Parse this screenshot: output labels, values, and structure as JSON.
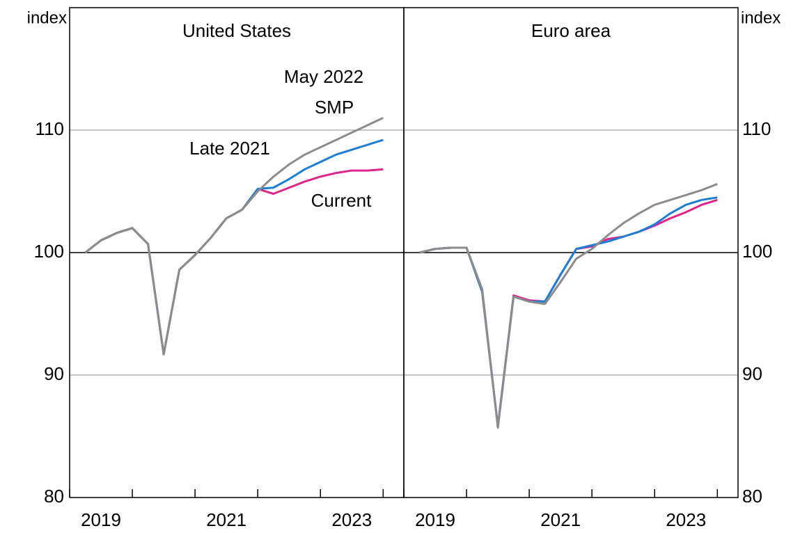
{
  "chart_data": [
    {
      "type": "line",
      "title": "United States",
      "y_label": "index",
      "axis_side": "left",
      "x": [
        2019.25,
        2019.5,
        2019.75,
        2020,
        2020.25,
        2020.5,
        2020.75,
        2021,
        2021.25,
        2021.5,
        2021.75,
        2022,
        2022.25,
        2022.5,
        2022.75,
        2023,
        2023.25,
        2023.5,
        2023.75,
        2024
      ],
      "series": [
        {
          "name": "Current",
          "color": "#e0258a",
          "values": [
            100,
            101,
            101.6,
            102,
            100.7,
            91.7,
            98.6,
            99.8,
            101.2,
            102.8,
            103.5,
            105.2,
            104.8,
            105.3,
            105.8,
            106.2,
            106.5,
            106.7,
            106.7,
            106.8
          ]
        },
        {
          "name": "May 2022 SMP",
          "color": "#1a7fd4",
          "values": [
            100,
            101,
            101.6,
            102,
            100.7,
            91.7,
            98.6,
            99.8,
            101.2,
            102.8,
            103.5,
            105.2,
            105.3,
            106,
            106.8,
            107.4,
            108,
            108.4,
            108.8,
            109.2
          ]
        },
        {
          "name": "Late 2021",
          "color": "#8c8c8c",
          "values": [
            100,
            101,
            101.6,
            102,
            100.7,
            91.7,
            98.6,
            99.8,
            101.2,
            102.8,
            103.5,
            105,
            106.2,
            107.2,
            108,
            108.6,
            109.2,
            109.8,
            110.4,
            111
          ]
        }
      ],
      "annotations": [
        {
          "text": "May 2022",
          "color": "#1a7fd4"
        },
        {
          "text": "SMP",
          "color": "#1a7fd4"
        },
        {
          "text": "Late 2021",
          "color": "#8c8c8c"
        },
        {
          "text": "Current",
          "color": "#e0258a"
        }
      ],
      "xlim": [
        2019,
        2024.33
      ],
      "xticks": [
        2019,
        2020,
        2021,
        2022,
        2023,
        2024
      ],
      "xtick_labels": [
        2019,
        2021,
        2023
      ],
      "ylim": [
        80,
        120
      ],
      "yticks": [
        80,
        90,
        100,
        110
      ],
      "baseline": 100,
      "grid": true
    },
    {
      "type": "line",
      "title": "Euro area",
      "y_label": "index",
      "axis_side": "right",
      "x": [
        2019.25,
        2019.5,
        2019.75,
        2020,
        2020.25,
        2020.5,
        2020.75,
        2021,
        2021.25,
        2021.5,
        2021.75,
        2022,
        2022.25,
        2022.5,
        2022.75,
        2023,
        2023.25,
        2023.5,
        2023.75,
        2024
      ],
      "series": [
        {
          "name": "Current",
          "color": "#e0258a",
          "values": [
            100,
            100.3,
            100.4,
            100.4,
            96.8,
            85.8,
            96.5,
            96.1,
            96,
            98.2,
            100.3,
            100.5,
            101.1,
            101.3,
            101.7,
            102.2,
            102.8,
            103.3,
            103.9,
            104.3
          ]
        },
        {
          "name": "May 2022 SMP",
          "color": "#1a7fd4",
          "values": [
            100,
            100.3,
            100.4,
            100.4,
            96.8,
            85.8,
            96.4,
            96,
            96,
            98.2,
            100.3,
            100.6,
            100.9,
            101.3,
            101.7,
            102.3,
            103.2,
            103.9,
            104.3,
            104.5
          ]
        },
        {
          "name": "Late 2021",
          "color": "#8c8c8c",
          "values": [
            100,
            100.3,
            100.4,
            100.4,
            97,
            85.7,
            96.4,
            96,
            95.8,
            97.6,
            99.5,
            100.3,
            101.4,
            102.4,
            103.2,
            103.9,
            104.3,
            104.7,
            105.1,
            105.6
          ]
        }
      ],
      "xlim": [
        2019,
        2024.33
      ],
      "xticks": [
        2019,
        2020,
        2021,
        2022,
        2023,
        2024
      ],
      "xtick_labels": [
        2019,
        2021,
        2023
      ],
      "ylim": [
        80,
        120
      ],
      "yticks": [
        80,
        90,
        100,
        110
      ],
      "baseline": 100,
      "grid": true
    }
  ]
}
